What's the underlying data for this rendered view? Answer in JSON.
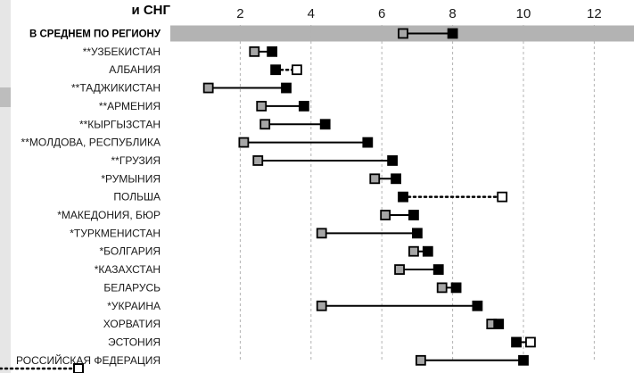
{
  "header_text": "и СНГ",
  "colors": {
    "band": "#b3b3b3",
    "grid": "#b3b3b3",
    "marker_grey": "#a6a6a6",
    "marker_black": "#000000",
    "marker_open": "#ffffff"
  },
  "chart_data": {
    "type": "dumbbell",
    "title": "",
    "xlim": [
      0,
      13
    ],
    "x_ticks": [
      2,
      4,
      6,
      8,
      10,
      12
    ],
    "grid": true,
    "categories": [
      "В СРЕДНЕМ ПО РЕГИОНУ",
      "**УЗБЕКИСТАН",
      "АЛБАНИЯ",
      "**ТАДЖИКИСТАН",
      "**АРМЕНИЯ",
      "**КЫРГЫЗСТАН",
      "**МОЛДОВА, РЕСПУБЛИКА",
      "**ГРУЗИЯ",
      "*РУМЫНИЯ",
      "ПОЛЬША",
      "*МАКЕДОНИЯ, БЮР",
      "*ТУРКМЕНИСТАН",
      "*БОЛГАРИЯ",
      "*КАЗАХСТАН",
      "БЕЛАРУСЬ",
      "*УКРАИНА",
      "ХОРВАТИЯ",
      "ЭСТОНИЯ",
      "РОССИЙСКАЯ ФЕДЕРАЦИЯ"
    ],
    "rows": [
      {
        "start": 6.6,
        "end": 8.0,
        "start_style": "grey",
        "end_style": "black",
        "line": "solid",
        "highlight": true
      },
      {
        "start": 2.4,
        "end": 2.9,
        "start_style": "grey",
        "end_style": "black",
        "line": "solid"
      },
      {
        "start": 3.0,
        "end": 3.6,
        "start_style": "black",
        "end_style": "open",
        "line": "dotted"
      },
      {
        "start": 1.1,
        "end": 3.3,
        "start_style": "grey",
        "end_style": "black",
        "line": "solid"
      },
      {
        "start": 2.6,
        "end": 3.8,
        "start_style": "grey",
        "end_style": "black",
        "line": "solid"
      },
      {
        "start": 2.7,
        "end": 4.4,
        "start_style": "grey",
        "end_style": "black",
        "line": "solid"
      },
      {
        "start": 2.1,
        "end": 5.6,
        "start_style": "grey",
        "end_style": "black",
        "line": "solid"
      },
      {
        "start": 2.5,
        "end": 6.3,
        "start_style": "grey",
        "end_style": "black",
        "line": "solid"
      },
      {
        "start": 5.8,
        "end": 6.4,
        "start_style": "grey",
        "end_style": "black",
        "line": "solid"
      },
      {
        "start": 6.6,
        "end": 9.4,
        "start_style": "black",
        "end_style": "open",
        "line": "dotted"
      },
      {
        "start": 6.1,
        "end": 6.9,
        "start_style": "grey",
        "end_style": "black",
        "line": "solid"
      },
      {
        "start": 4.3,
        "end": 7.0,
        "start_style": "grey",
        "end_style": "black",
        "line": "solid"
      },
      {
        "start": 6.9,
        "end": 7.3,
        "start_style": "grey",
        "end_style": "black",
        "line": "solid"
      },
      {
        "start": 6.5,
        "end": 7.6,
        "start_style": "grey",
        "end_style": "black",
        "line": "solid"
      },
      {
        "start": 7.7,
        "end": 8.1,
        "start_style": "grey",
        "end_style": "black",
        "line": "solid"
      },
      {
        "start": 4.3,
        "end": 8.7,
        "start_style": "grey",
        "end_style": "black",
        "line": "solid"
      },
      {
        "start": 9.1,
        "end": 9.3,
        "start_style": "grey",
        "end_style": "black",
        "line": "solid"
      },
      {
        "start": 9.8,
        "end": 10.2,
        "start_style": "black",
        "end_style": "open",
        "line": "solid"
      },
      {
        "start": 7.1,
        "end": 10.0,
        "start_style": "grey",
        "end_style": "black",
        "line": "solid"
      }
    ]
  }
}
